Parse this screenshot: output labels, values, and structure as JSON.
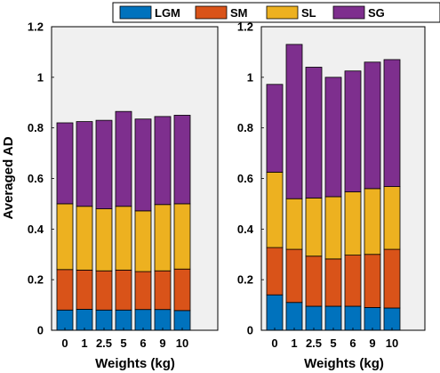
{
  "colors": {
    "LGM": "#0072BD",
    "SM": "#D95319",
    "SL": "#EDB120",
    "SG": "#7E2F8E",
    "plot_bg": "#F0F0F0"
  },
  "legend": [
    "LGM",
    "SM",
    "SL",
    "SG"
  ],
  "chart_data": [
    {
      "type": "bar",
      "stacked": true,
      "categories": [
        "0",
        "1",
        "2.5",
        "5",
        "6",
        "9",
        "10"
      ],
      "xlabel": "Weights (kg)",
      "ylabel": "Averaged AD",
      "ylim": [
        0,
        1.2
      ],
      "yticks": [
        "0",
        "0.2",
        "0.4",
        "0.6",
        "0.8",
        "1",
        "1.2"
      ],
      "series": [
        {
          "name": "LGM",
          "values": [
            0.08,
            0.083,
            0.08,
            0.08,
            0.082,
            0.082,
            0.078
          ]
        },
        {
          "name": "SM",
          "values": [
            0.16,
            0.155,
            0.155,
            0.158,
            0.15,
            0.153,
            0.164
          ]
        },
        {
          "name": "SL",
          "values": [
            0.26,
            0.252,
            0.245,
            0.252,
            0.24,
            0.262,
            0.258
          ]
        },
        {
          "name": "SG",
          "values": [
            0.32,
            0.335,
            0.35,
            0.375,
            0.363,
            0.348,
            0.35
          ]
        }
      ]
    },
    {
      "type": "bar",
      "stacked": true,
      "categories": [
        "0",
        "1",
        "2.5",
        "5",
        "6",
        "9",
        "10"
      ],
      "xlabel": "Weights (kg)",
      "ylabel": "",
      "ylim": [
        0,
        1.2
      ],
      "yticks": [
        "0",
        "0.2",
        "0.4",
        "0.6",
        "0.8",
        "1",
        "1.2"
      ],
      "series": [
        {
          "name": "LGM",
          "values": [
            0.14,
            0.11,
            0.095,
            0.095,
            0.095,
            0.09,
            0.088
          ]
        },
        {
          "name": "SM",
          "values": [
            0.187,
            0.21,
            0.198,
            0.187,
            0.202,
            0.21,
            0.232
          ]
        },
        {
          "name": "SL",
          "values": [
            0.298,
            0.2,
            0.23,
            0.246,
            0.25,
            0.26,
            0.248
          ]
        },
        {
          "name": "SG",
          "values": [
            0.347,
            0.61,
            0.517,
            0.472,
            0.478,
            0.5,
            0.502
          ]
        }
      ]
    }
  ]
}
